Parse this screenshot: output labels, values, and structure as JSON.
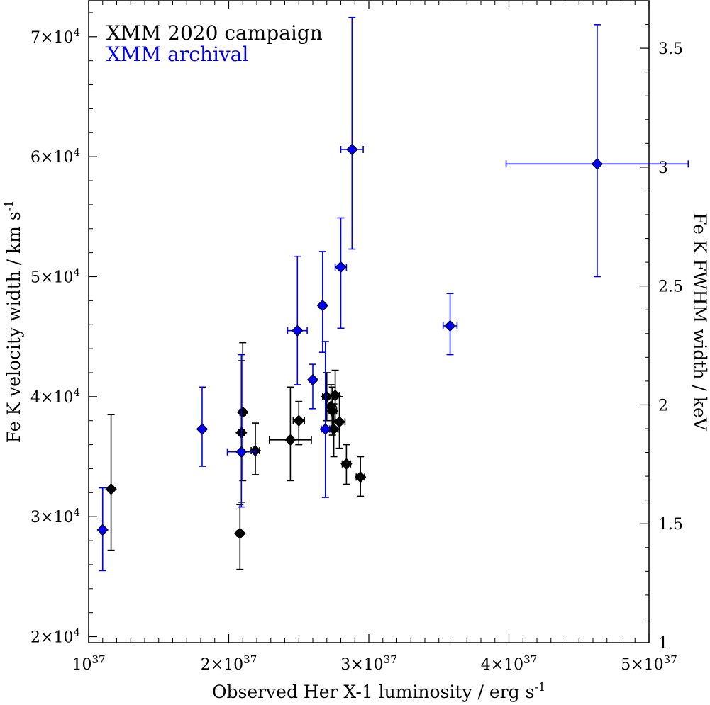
{
  "chart_data": {
    "type": "scatter",
    "xlabel": "Observed Her X-1 luminosity / erg s",
    "xlabel_sup": "-1",
    "ylabel": "Fe K velocity width / km s",
    "ylabel_sup": "-1",
    "ylabel_right": "Fe K FWHM width / keV",
    "xlim": [
      1e+37,
      5e+37
    ],
    "ylim": [
      19500,
      73000
    ],
    "ylim_right": [
      1,
      3.7
    ],
    "x_ticks": [
      {
        "value": 1e+37,
        "mant": "10",
        "exp": "37"
      },
      {
        "value": 2e+37,
        "mant": "2×10",
        "exp": "37"
      },
      {
        "value": 3e+37,
        "mant": "3×10",
        "exp": "37"
      },
      {
        "value": 4e+37,
        "mant": "4×10",
        "exp": "37"
      },
      {
        "value": 5e+37,
        "mant": "5×10",
        "exp": "37"
      }
    ],
    "y_ticks": [
      {
        "value": 20000,
        "mant": "2×10",
        "exp": "4"
      },
      {
        "value": 30000,
        "mant": "3×10",
        "exp": "4"
      },
      {
        "value": 40000,
        "mant": "4×10",
        "exp": "4"
      },
      {
        "value": 50000,
        "mant": "5×10",
        "exp": "4"
      },
      {
        "value": 60000,
        "mant": "6×10",
        "exp": "4"
      },
      {
        "value": 70000,
        "mant": "7×10",
        "exp": "4"
      }
    ],
    "y_ticks_right": [
      "1",
      "1.5",
      "2",
      "2.5",
      "3",
      "3.5"
    ],
    "legend": "top-left",
    "grid": false,
    "series": [
      {
        "name": "XMM 2020 campaign",
        "color": "#000000",
        "marker": "diamond",
        "points": [
          {
            "x": 1.16e+37,
            "xerr": 0.0,
            "y": 32300,
            "ylo": 27200,
            "yhi": 38500
          },
          {
            "x": 2.08e+37,
            "xerr": 2e+35,
            "y": 28600,
            "ylo": 25600,
            "yhi": 31000
          },
          {
            "x": 2.09e+37,
            "xerr": 2e+35,
            "y": 37000,
            "ylo": 31200,
            "yhi": 43000
          },
          {
            "x": 2.1e+37,
            "xerr": 2e+35,
            "y": 38700,
            "ylo": 33000,
            "yhi": 44500
          },
          {
            "x": 2.19e+37,
            "xerr": 3e+35,
            "y": 35500,
            "ylo": 33500,
            "yhi": 37800
          },
          {
            "x": 2.44e+37,
            "xerr": 1.5e+36,
            "y": 36400,
            "ylo": 33000,
            "yhi": 40800
          },
          {
            "x": 2.5e+37,
            "xerr": 4e+35,
            "y": 38000,
            "ylo": 36000,
            "yhi": 39600
          },
          {
            "x": 2.7e+37,
            "xerr": 3e+35,
            "y": 40000,
            "ylo": 38000,
            "yhi": 42000
          },
          {
            "x": 2.73e+37,
            "xerr": 3e+35,
            "y": 39200,
            "ylo": 37400,
            "yhi": 41000
          },
          {
            "x": 2.74e+37,
            "xerr": 3e+35,
            "y": 38800,
            "ylo": 36800,
            "yhi": 40800
          },
          {
            "x": 2.76e+37,
            "xerr": 3e+35,
            "y": 40100,
            "ylo": 38000,
            "yhi": 42200
          },
          {
            "x": 2.75e+37,
            "xerr": 3e+35,
            "y": 37300,
            "ylo": 35000,
            "yhi": 39400
          },
          {
            "x": 2.79e+37,
            "xerr": 4e+35,
            "y": 37900,
            "ylo": 35700,
            "yhi": 40000
          },
          {
            "x": 2.84e+37,
            "xerr": 3e+35,
            "y": 34400,
            "ylo": 32700,
            "yhi": 36000
          },
          {
            "x": 2.94e+37,
            "xerr": 3e+35,
            "y": 33300,
            "ylo": 31700,
            "yhi": 35000
          }
        ]
      },
      {
        "name": "XMM archival",
        "color": "#0000ee",
        "marker": "diamond",
        "points": [
          {
            "x": 1.1e+37,
            "xerr": 0.0,
            "y": 28900,
            "ylo": 25500,
            "yhi": 32400
          },
          {
            "x": 1.81e+37,
            "xerr": 0.0,
            "y": 37300,
            "ylo": 34200,
            "yhi": 40800
          },
          {
            "x": 2.09e+37,
            "xerr": 1e+36,
            "y": 35400,
            "ylo": 30800,
            "yhi": 43500
          },
          {
            "x": 2.49e+37,
            "xerr": 7e+35,
            "y": 45500,
            "ylo": 41000,
            "yhi": 51700
          },
          {
            "x": 2.6e+37,
            "xerr": 1e+35,
            "y": 41400,
            "ylo": 39000,
            "yhi": 42700
          },
          {
            "x": 2.67e+37,
            "xerr": 2e+35,
            "y": 47600,
            "ylo": 43700,
            "yhi": 52100
          },
          {
            "x": 2.69e+37,
            "xerr": 3e+35,
            "y": 37300,
            "ylo": 31600,
            "yhi": 44600
          },
          {
            "x": 2.8e+37,
            "xerr": 4e+35,
            "y": 50800,
            "ylo": 45700,
            "yhi": 54900
          },
          {
            "x": 2.88e+37,
            "xerr": 8e+35,
            "y": 60600,
            "ylo": 52300,
            "yhi": 71600
          },
          {
            "x": 3.58e+37,
            "xerr": 5e+35,
            "y": 45900,
            "ylo": 43500,
            "yhi": 48600
          },
          {
            "x": 4.63e+37,
            "xerr": 6.5e+36,
            "y": 59400,
            "ylo": 50000,
            "yhi": 71000
          }
        ]
      }
    ]
  }
}
